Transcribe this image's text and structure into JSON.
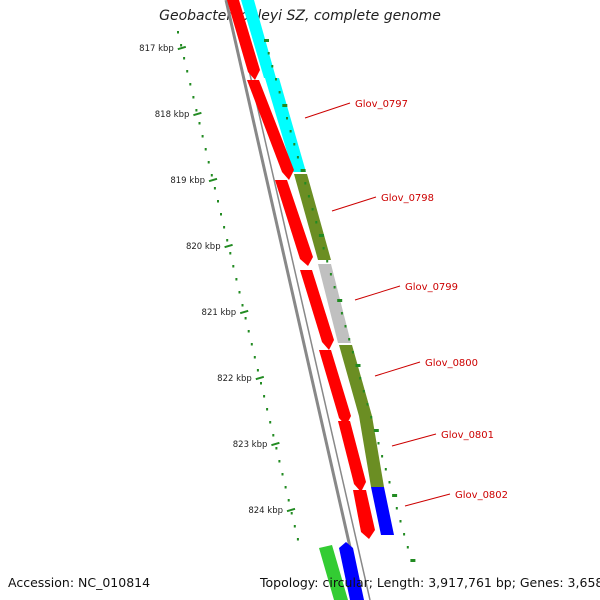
{
  "title": "Geobacter lovleyi SZ, complete genome",
  "footer": {
    "accession": "Accession: NC_010814",
    "summary": "Topology: circular; Length: 3,917,761 bp; Genes: 3,658"
  },
  "ticks": [
    "817 kbp",
    "818 kbp",
    "819 kbp",
    "820 kbp",
    "821 kbp",
    "822 kbp",
    "823 kbp",
    "824 kbp"
  ],
  "colors": {
    "cds_forward": "#ff0000",
    "backbone": "#888888",
    "scale_ticks": "#228b22",
    "gene_labels": "#cc0000",
    "cyan_feature": "#00ffff",
    "olive_feature": "#6b8e23",
    "gray_feature": "#c0c0c0",
    "blue_feature": "#0000ff",
    "green_feature": "#33cc33"
  },
  "genes": [
    {
      "name": "Glov_0797",
      "color": "#00ffff"
    },
    {
      "name": "Glov_0798",
      "color": "#6b8e23"
    },
    {
      "name": "Glov_0799",
      "color": "#c0c0c0"
    },
    {
      "name": "Glov_0800",
      "color": "#6b8e23"
    },
    {
      "name": "Glov_0801",
      "color": "#6b8e23"
    },
    {
      "name": "Glov_0802",
      "color": "#0000ff"
    }
  ]
}
